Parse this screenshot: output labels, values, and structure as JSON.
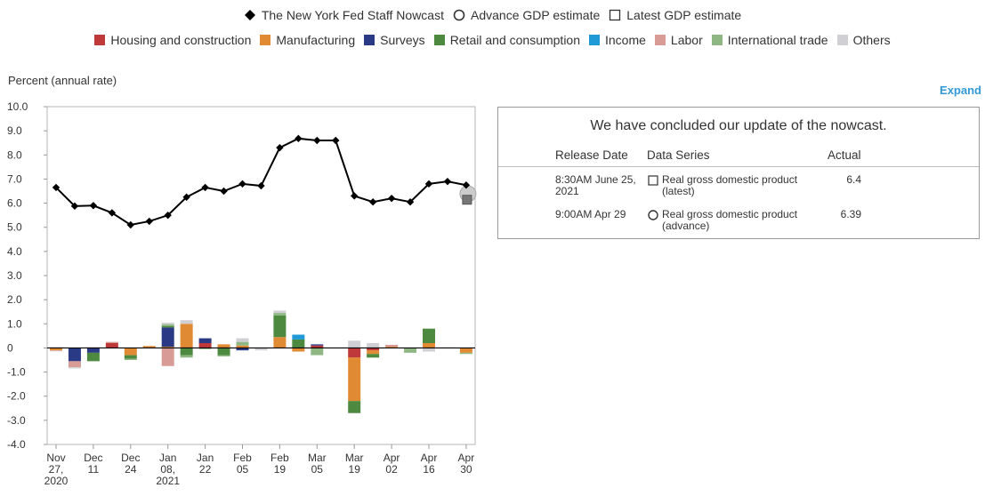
{
  "legend": {
    "nowcast_label": "The New York Fed Staff Nowcast",
    "advance_label": "Advance GDP estimate",
    "latest_label": "Latest GDP estimate",
    "categories": [
      {
        "label": "Housing and construction",
        "color": "#c0393a"
      },
      {
        "label": "Manufacturing",
        "color": "#e08a34"
      },
      {
        "label": "Surveys",
        "color": "#2b3a85"
      },
      {
        "label": "Retail and consumption",
        "color": "#4d8a3f"
      },
      {
        "label": "Income",
        "color": "#1f9ad6"
      },
      {
        "label": "Labor",
        "color": "#d99b95"
      },
      {
        "label": "International trade",
        "color": "#8fb784"
      },
      {
        "label": "Others",
        "color": "#d0d0d4"
      }
    ]
  },
  "chart": {
    "axis_title": "Percent (annual rate)",
    "expand_label": "Expand"
  },
  "chart_data": {
    "type": "bar",
    "title": "The New York Fed Staff Nowcast",
    "ylabel": "Percent (annual rate)",
    "ylim": [
      -4.0,
      10.0
    ],
    "yticks": [
      "10.0",
      "9.0",
      "8.0",
      "7.0",
      "6.0",
      "5.0",
      "4.0",
      "3.0",
      "2.0",
      "1.0",
      "0",
      "-1.0",
      "-2.0",
      "-3.0",
      "-4.0"
    ],
    "xticks": [
      {
        "label": "Nov\n27,\n2020",
        "index": 0
      },
      {
        "label": "Dec\n11",
        "index": 2
      },
      {
        "label": "Dec\n24",
        "index": 4
      },
      {
        "label": "Jan\n08,\n2021",
        "index": 6
      },
      {
        "label": "Jan\n22",
        "index": 8
      },
      {
        "label": "Feb\n05",
        "index": 10
      },
      {
        "label": "Feb\n19",
        "index": 12
      },
      {
        "label": "Mar\n05",
        "index": 14
      },
      {
        "label": "Mar\n19",
        "index": 16
      },
      {
        "label": "Apr\n02",
        "index": 18
      },
      {
        "label": "Apr\n16",
        "index": 20
      },
      {
        "label": "Apr\n30",
        "index": 22
      }
    ],
    "nowcast": [
      6.65,
      5.88,
      5.9,
      5.6,
      5.1,
      5.25,
      5.5,
      6.25,
      6.65,
      6.5,
      6.8,
      6.72,
      8.3,
      8.68,
      8.6,
      8.6,
      6.3,
      6.05,
      6.2,
      6.05,
      6.8,
      6.9,
      6.75
    ],
    "advance_gdp": {
      "index": 22,
      "value": 6.39
    },
    "latest_gdp": {
      "index": 22,
      "value": 6.4
    },
    "series": [
      {
        "name": "Housing and construction",
        "values": [
          0.02,
          0.0,
          0.02,
          0.2,
          0.0,
          0.0,
          0.0,
          0.0,
          0.2,
          0.0,
          0.0,
          -0.02,
          0.0,
          0.0,
          0.1,
          0.0,
          -0.4,
          -0.1,
          0.0,
          0.0,
          0.0,
          0.0,
          0.0
        ]
      },
      {
        "name": "Manufacturing",
        "values": [
          -0.1,
          0.0,
          0.0,
          0.0,
          -0.3,
          0.08,
          0.05,
          1.0,
          0.0,
          0.15,
          0.1,
          0.0,
          0.45,
          -0.15,
          0.0,
          0.0,
          -1.8,
          -0.15,
          0.05,
          0.0,
          0.2,
          0.0,
          -0.2
        ]
      },
      {
        "name": "Surveys",
        "values": [
          0.0,
          -0.55,
          -0.2,
          0.0,
          0.0,
          0.0,
          0.8,
          0.0,
          0.2,
          0.0,
          -0.1,
          0.0,
          0.0,
          0.0,
          0.05,
          0.0,
          0.0,
          0.0,
          0.0,
          0.0,
          0.0,
          0.0,
          0.0
        ]
      },
      {
        "name": "Retail and consumption",
        "values": [
          0.0,
          0.0,
          -0.35,
          0.0,
          -0.15,
          0.0,
          0.05,
          -0.3,
          0.0,
          -0.3,
          0.0,
          0.0,
          0.9,
          0.35,
          0.0,
          0.0,
          -0.5,
          -0.15,
          0.0,
          0.0,
          0.6,
          0.0,
          0.0
        ]
      },
      {
        "name": "Income",
        "values": [
          0.0,
          0.0,
          0.0,
          0.0,
          0.0,
          0.0,
          0.0,
          0.0,
          0.0,
          0.0,
          0.0,
          0.0,
          0.0,
          0.2,
          0.0,
          0.0,
          0.0,
          0.0,
          0.0,
          0.0,
          0.0,
          0.0,
          0.0
        ]
      },
      {
        "name": "Labor",
        "values": [
          -0.02,
          -0.25,
          0.0,
          0.05,
          0.0,
          0.0,
          -0.75,
          0.0,
          0.0,
          0.0,
          0.0,
          0.0,
          0.0,
          0.0,
          0.0,
          0.0,
          0.0,
          0.0,
          0.08,
          0.0,
          0.0,
          0.0,
          0.0
        ]
      },
      {
        "name": "International trade",
        "values": [
          0.0,
          0.0,
          0.0,
          0.0,
          -0.05,
          0.0,
          0.08,
          -0.1,
          -0.05,
          -0.05,
          0.15,
          0.0,
          0.1,
          0.0,
          -0.3,
          0.0,
          0.0,
          0.0,
          0.0,
          -0.2,
          0.0,
          0.0,
          -0.05
        ]
      },
      {
        "name": "Others",
        "values": [
          -0.02,
          -0.05,
          0.0,
          0.0,
          0.0,
          0.0,
          0.07,
          0.15,
          0.0,
          0.0,
          0.15,
          -0.08,
          0.1,
          0.0,
          0.0,
          0.0,
          0.3,
          0.2,
          0.0,
          0.0,
          -0.15,
          0.02,
          0.0
        ]
      }
    ]
  },
  "panel": {
    "message": "We have concluded our update of the nowcast.",
    "headers": {
      "release_date": "Release Date",
      "data_series": "Data Series",
      "actual": "Actual"
    },
    "rows": [
      {
        "date_line1": "8:30AM June 25,",
        "date_line2": "2021",
        "icon": "square-icon",
        "series_line1": "Real gross domestic product",
        "series_line2": "(latest)",
        "actual": "6.4"
      },
      {
        "date_line1": "9:00AM Apr 29",
        "date_line2": "",
        "icon": "circle-icon",
        "series_line1": "Real gross domestic product",
        "series_line2": "(advance)",
        "actual": "6.39"
      }
    ]
  }
}
